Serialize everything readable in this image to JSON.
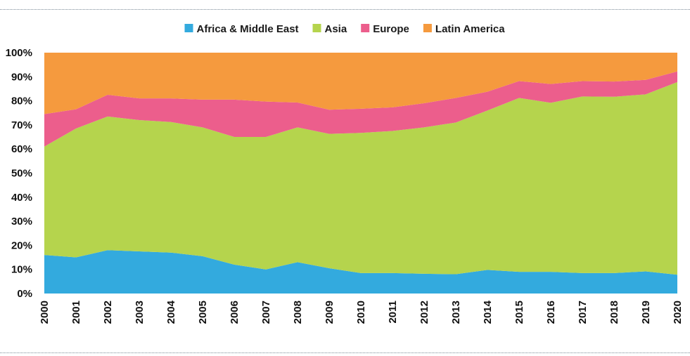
{
  "chart_data": {
    "type": "area",
    "stacked": true,
    "percent": true,
    "title": "",
    "xlabel": "",
    "ylabel": "",
    "ylim": [
      0,
      100
    ],
    "legend_position": "top-center",
    "categories": [
      "2000",
      "2001",
      "2002",
      "2003",
      "2004",
      "2005",
      "2006",
      "2007",
      "2008",
      "2009",
      "2010",
      "2011",
      "2012",
      "2013",
      "2014",
      "2015",
      "2016",
      "2017",
      "2018",
      "2019",
      "2020"
    ],
    "y_ticks": [
      "0%",
      "10%",
      "20%",
      "30%",
      "40%",
      "50%",
      "60%",
      "70%",
      "80%",
      "90%",
      "100%"
    ],
    "series": [
      {
        "name": "Africa & Middle East",
        "color": "#33aade",
        "values": [
          16,
          15,
          18,
          17.5,
          17,
          15.5,
          12,
          10,
          13,
          10.5,
          8.5,
          8.5,
          8.2,
          8,
          9.8,
          9,
          9,
          8.5,
          8.5,
          9.2,
          7.8
        ]
      },
      {
        "name": "Asia",
        "color": "#b5d44d",
        "values": [
          45,
          53.5,
          55.5,
          54.5,
          54.2,
          53.5,
          53,
          55,
          56,
          55.8,
          58.2,
          59,
          60.8,
          63,
          66.2,
          72.2,
          70.2,
          73.3,
          73.2,
          73.5,
          80
        ]
      },
      {
        "name": "Europe",
        "color": "#ec5e8c",
        "values": [
          13.5,
          8,
          9,
          9,
          9.8,
          11.5,
          15.5,
          14.7,
          10.3,
          10,
          10,
          9.8,
          10,
          10.2,
          7.8,
          7,
          7.8,
          6.4,
          6.3,
          6,
          4.4
        ]
      },
      {
        "name": "Latin America",
        "color": "#f59a3e",
        "values": [
          25.5,
          23.5,
          17.5,
          19,
          19,
          19.5,
          19.5,
          20.3,
          20.7,
          23.7,
          23.3,
          22.7,
          21,
          18.8,
          16.2,
          11.8,
          13,
          11.8,
          12,
          11.3,
          7.8
        ]
      }
    ]
  }
}
